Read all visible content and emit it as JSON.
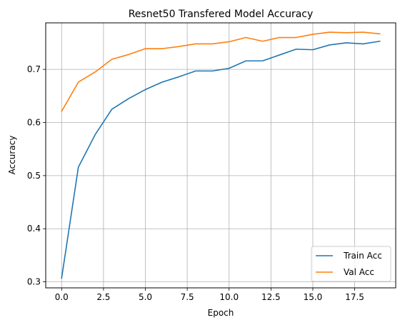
{
  "chart_data": {
    "type": "line",
    "title": "Resnet50 Transfered Model Accuracy",
    "xlabel": "Epoch",
    "ylabel": "Accuracy",
    "xlim": [
      -0.95,
      19.95
    ],
    "ylim": [
      0.2887,
      0.7876
    ],
    "xticks": [
      0.0,
      2.5,
      5.0,
      7.5,
      10.0,
      12.5,
      15.0,
      17.5
    ],
    "xtick_labels": [
      "0.0",
      "2.5",
      "5.0",
      "7.5",
      "10.0",
      "12.5",
      "15.0",
      "17.5"
    ],
    "yticks": [
      0.3,
      0.4,
      0.5,
      0.6,
      0.7
    ],
    "ytick_labels": [
      "0.3",
      "0.4",
      "0.5",
      "0.6",
      "0.7"
    ],
    "grid": true,
    "legend_position": "lower-right",
    "x": [
      0,
      1,
      2,
      3,
      4,
      5,
      6,
      7,
      8,
      9,
      10,
      11,
      12,
      13,
      14,
      15,
      16,
      17,
      18,
      19
    ],
    "series": [
      {
        "name": "Train Acc",
        "color": "#1f77b4",
        "values": [
          0.307,
          0.516,
          0.577,
          0.625,
          0.645,
          0.662,
          0.676,
          0.686,
          0.697,
          0.697,
          0.702,
          0.716,
          0.716,
          0.727,
          0.738,
          0.737,
          0.746,
          0.75,
          0.748,
          0.753
        ]
      },
      {
        "name": "Val Acc",
        "color": "#ff7f0e",
        "values": [
          0.621,
          0.676,
          0.695,
          0.719,
          0.728,
          0.739,
          0.739,
          0.743,
          0.748,
          0.748,
          0.752,
          0.76,
          0.753,
          0.76,
          0.76,
          0.766,
          0.77,
          0.769,
          0.77,
          0.767
        ]
      }
    ]
  }
}
